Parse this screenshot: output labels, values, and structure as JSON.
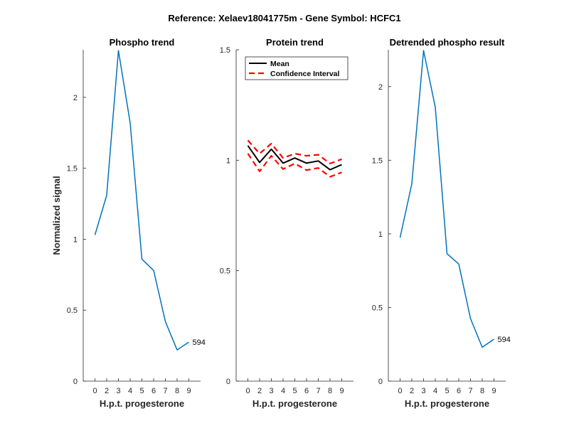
{
  "suptitle": "Reference:  Xelaev18041775m - Gene Symbol:  HCFC1",
  "chart_data": [
    {
      "type": "line",
      "title": "Phospho trend",
      "xlabel": "H.p.t. progesterone",
      "ylabel": "Normalized signal",
      "categories": [
        "0",
        "2",
        "3",
        "4",
        "5",
        "6",
        "7",
        "8",
        "9"
      ],
      "ylim": [
        0,
        2.335
      ],
      "yticks": [
        "0",
        "0.5",
        "1",
        "1.5",
        "2"
      ],
      "ytick_values": [
        0,
        0.5,
        1,
        1.5,
        2
      ],
      "series": [
        {
          "name": "Phospho",
          "color": "#0072BD",
          "values": [
            1.03,
            1.31,
            2.33,
            1.82,
            0.86,
            0.78,
            0.42,
            0.22,
            0.275
          ]
        }
      ],
      "annotation": "594"
    },
    {
      "type": "line",
      "title": "Protein trend",
      "xlabel": "H.p.t. progesterone",
      "ylabel": "",
      "categories": [
        "0",
        "2",
        "3",
        "4",
        "5",
        "6",
        "7",
        "8",
        "9"
      ],
      "ylim": [
        0,
        1.5
      ],
      "yticks": [
        "0",
        "0.5",
        "1",
        "1.5"
      ],
      "ytick_values": [
        0,
        0.5,
        1,
        1.5
      ],
      "legend": [
        "Mean",
        "Confidence Interval"
      ],
      "legend_position": "top-right",
      "series": [
        {
          "name": "Mean",
          "color": "#000000",
          "values": [
            1.066,
            0.99,
            1.05,
            0.987,
            1.01,
            0.987,
            0.997,
            0.957,
            0.98
          ]
        },
        {
          "name": "Confidence Interval (upper)",
          "color": "#FF0000",
          "values": [
            1.09,
            1.03,
            1.075,
            1.01,
            1.03,
            1.02,
            1.025,
            0.985,
            1.005
          ]
        },
        {
          "name": "Confidence Interval (lower)",
          "color": "#FF0000",
          "values": [
            1.03,
            0.95,
            1.02,
            0.96,
            0.985,
            0.955,
            0.965,
            0.925,
            0.945
          ]
        }
      ]
    },
    {
      "type": "line",
      "title": "Detrended phospho result",
      "xlabel": "H.p.t. progesterone",
      "ylabel": "",
      "categories": [
        "0",
        "2",
        "3",
        "4",
        "5",
        "6",
        "7",
        "8",
        "9"
      ],
      "ylim": [
        0,
        2.25
      ],
      "yticks": [
        "0",
        "0.5",
        "1",
        "1.5",
        "2"
      ],
      "ytick_values": [
        0,
        0.5,
        1,
        1.5,
        2
      ],
      "series": [
        {
          "name": "Detrended phospho",
          "color": "#0072BD",
          "values": [
            0.975,
            1.34,
            2.245,
            1.86,
            0.865,
            0.795,
            0.425,
            0.23,
            0.285
          ]
        }
      ],
      "annotation": "594"
    }
  ]
}
